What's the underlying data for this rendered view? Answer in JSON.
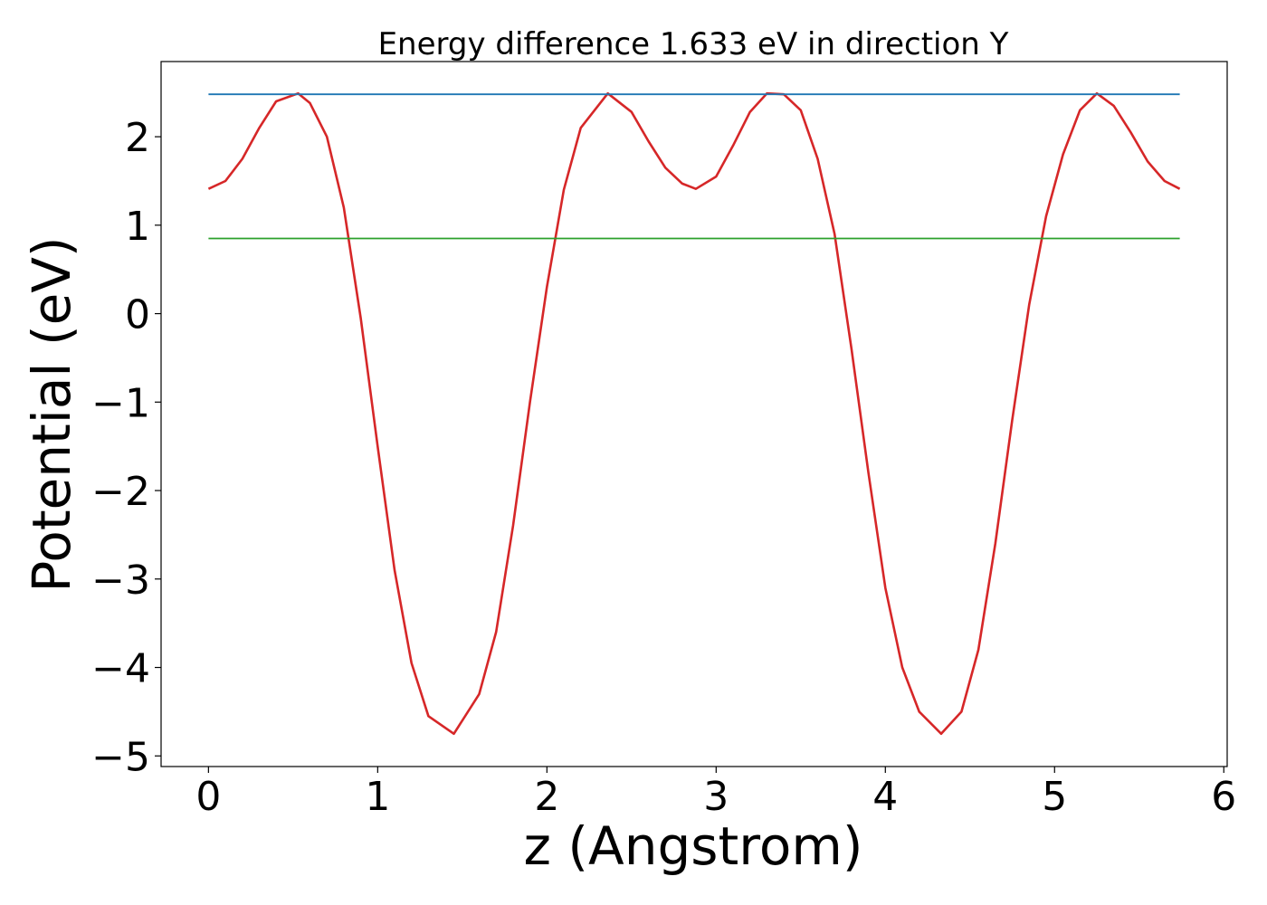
{
  "chart_data": {
    "type": "line",
    "title": "Energy difference 1.633 eV in direction Y",
    "xlabel": "z (Angstrom)",
    "ylabel": "Potential (eV)",
    "xlim": [
      -0.28,
      6.02
    ],
    "ylim": [
      -5.12,
      2.85
    ],
    "grid": false,
    "legend": "none",
    "x_ticks": [
      0,
      1,
      2,
      3,
      4,
      5,
      6
    ],
    "x_tick_labels": [
      "0",
      "1",
      "2",
      "3",
      "4",
      "5",
      "6"
    ],
    "y_ticks": [
      2,
      1,
      0,
      -1,
      -2,
      -3,
      -4,
      -5
    ],
    "y_tick_labels": [
      "2",
      "1",
      "0",
      "−1",
      "−2",
      "−3",
      "−4",
      "−5"
    ],
    "series": [
      {
        "color": "#d62728",
        "x": [
          0.0,
          0.1,
          0.2,
          0.3,
          0.4,
          0.53,
          0.6,
          0.7,
          0.8,
          0.9,
          1.0,
          1.1,
          1.2,
          1.3,
          1.45,
          1.6,
          1.7,
          1.8,
          1.9,
          2.0,
          2.1,
          2.2,
          2.36,
          2.5,
          2.6,
          2.7,
          2.8,
          2.88,
          3.0,
          3.1,
          3.2,
          3.3,
          3.4,
          3.5,
          3.6,
          3.7,
          3.8,
          3.9,
          4.0,
          4.1,
          4.2,
          4.33,
          4.45,
          4.55,
          4.65,
          4.75,
          4.85,
          4.95,
          5.05,
          5.15,
          5.25,
          5.35,
          5.45,
          5.55,
          5.65,
          5.74
        ],
        "y": [
          1.41,
          1.5,
          1.75,
          2.1,
          2.4,
          2.49,
          2.38,
          2.0,
          1.2,
          -0.05,
          -1.5,
          -2.9,
          -3.95,
          -4.55,
          -4.75,
          -4.3,
          -3.6,
          -2.4,
          -1.0,
          0.3,
          1.4,
          2.1,
          2.49,
          2.28,
          1.95,
          1.65,
          1.47,
          1.41,
          1.55,
          1.9,
          2.28,
          2.49,
          2.48,
          2.3,
          1.75,
          0.9,
          -0.4,
          -1.8,
          -3.1,
          -4.0,
          -4.5,
          -4.75,
          -4.5,
          -3.8,
          -2.6,
          -1.2,
          0.1,
          1.1,
          1.8,
          2.3,
          2.49,
          2.35,
          2.05,
          1.72,
          1.5,
          1.41
        ]
      },
      {
        "color": "#1f77b4",
        "x": [
          0.0,
          5.74
        ],
        "y": [
          2.48,
          2.48
        ]
      },
      {
        "color": "#2ca02c",
        "x": [
          0.0,
          5.74
        ],
        "y": [
          0.85,
          0.85
        ]
      }
    ]
  }
}
